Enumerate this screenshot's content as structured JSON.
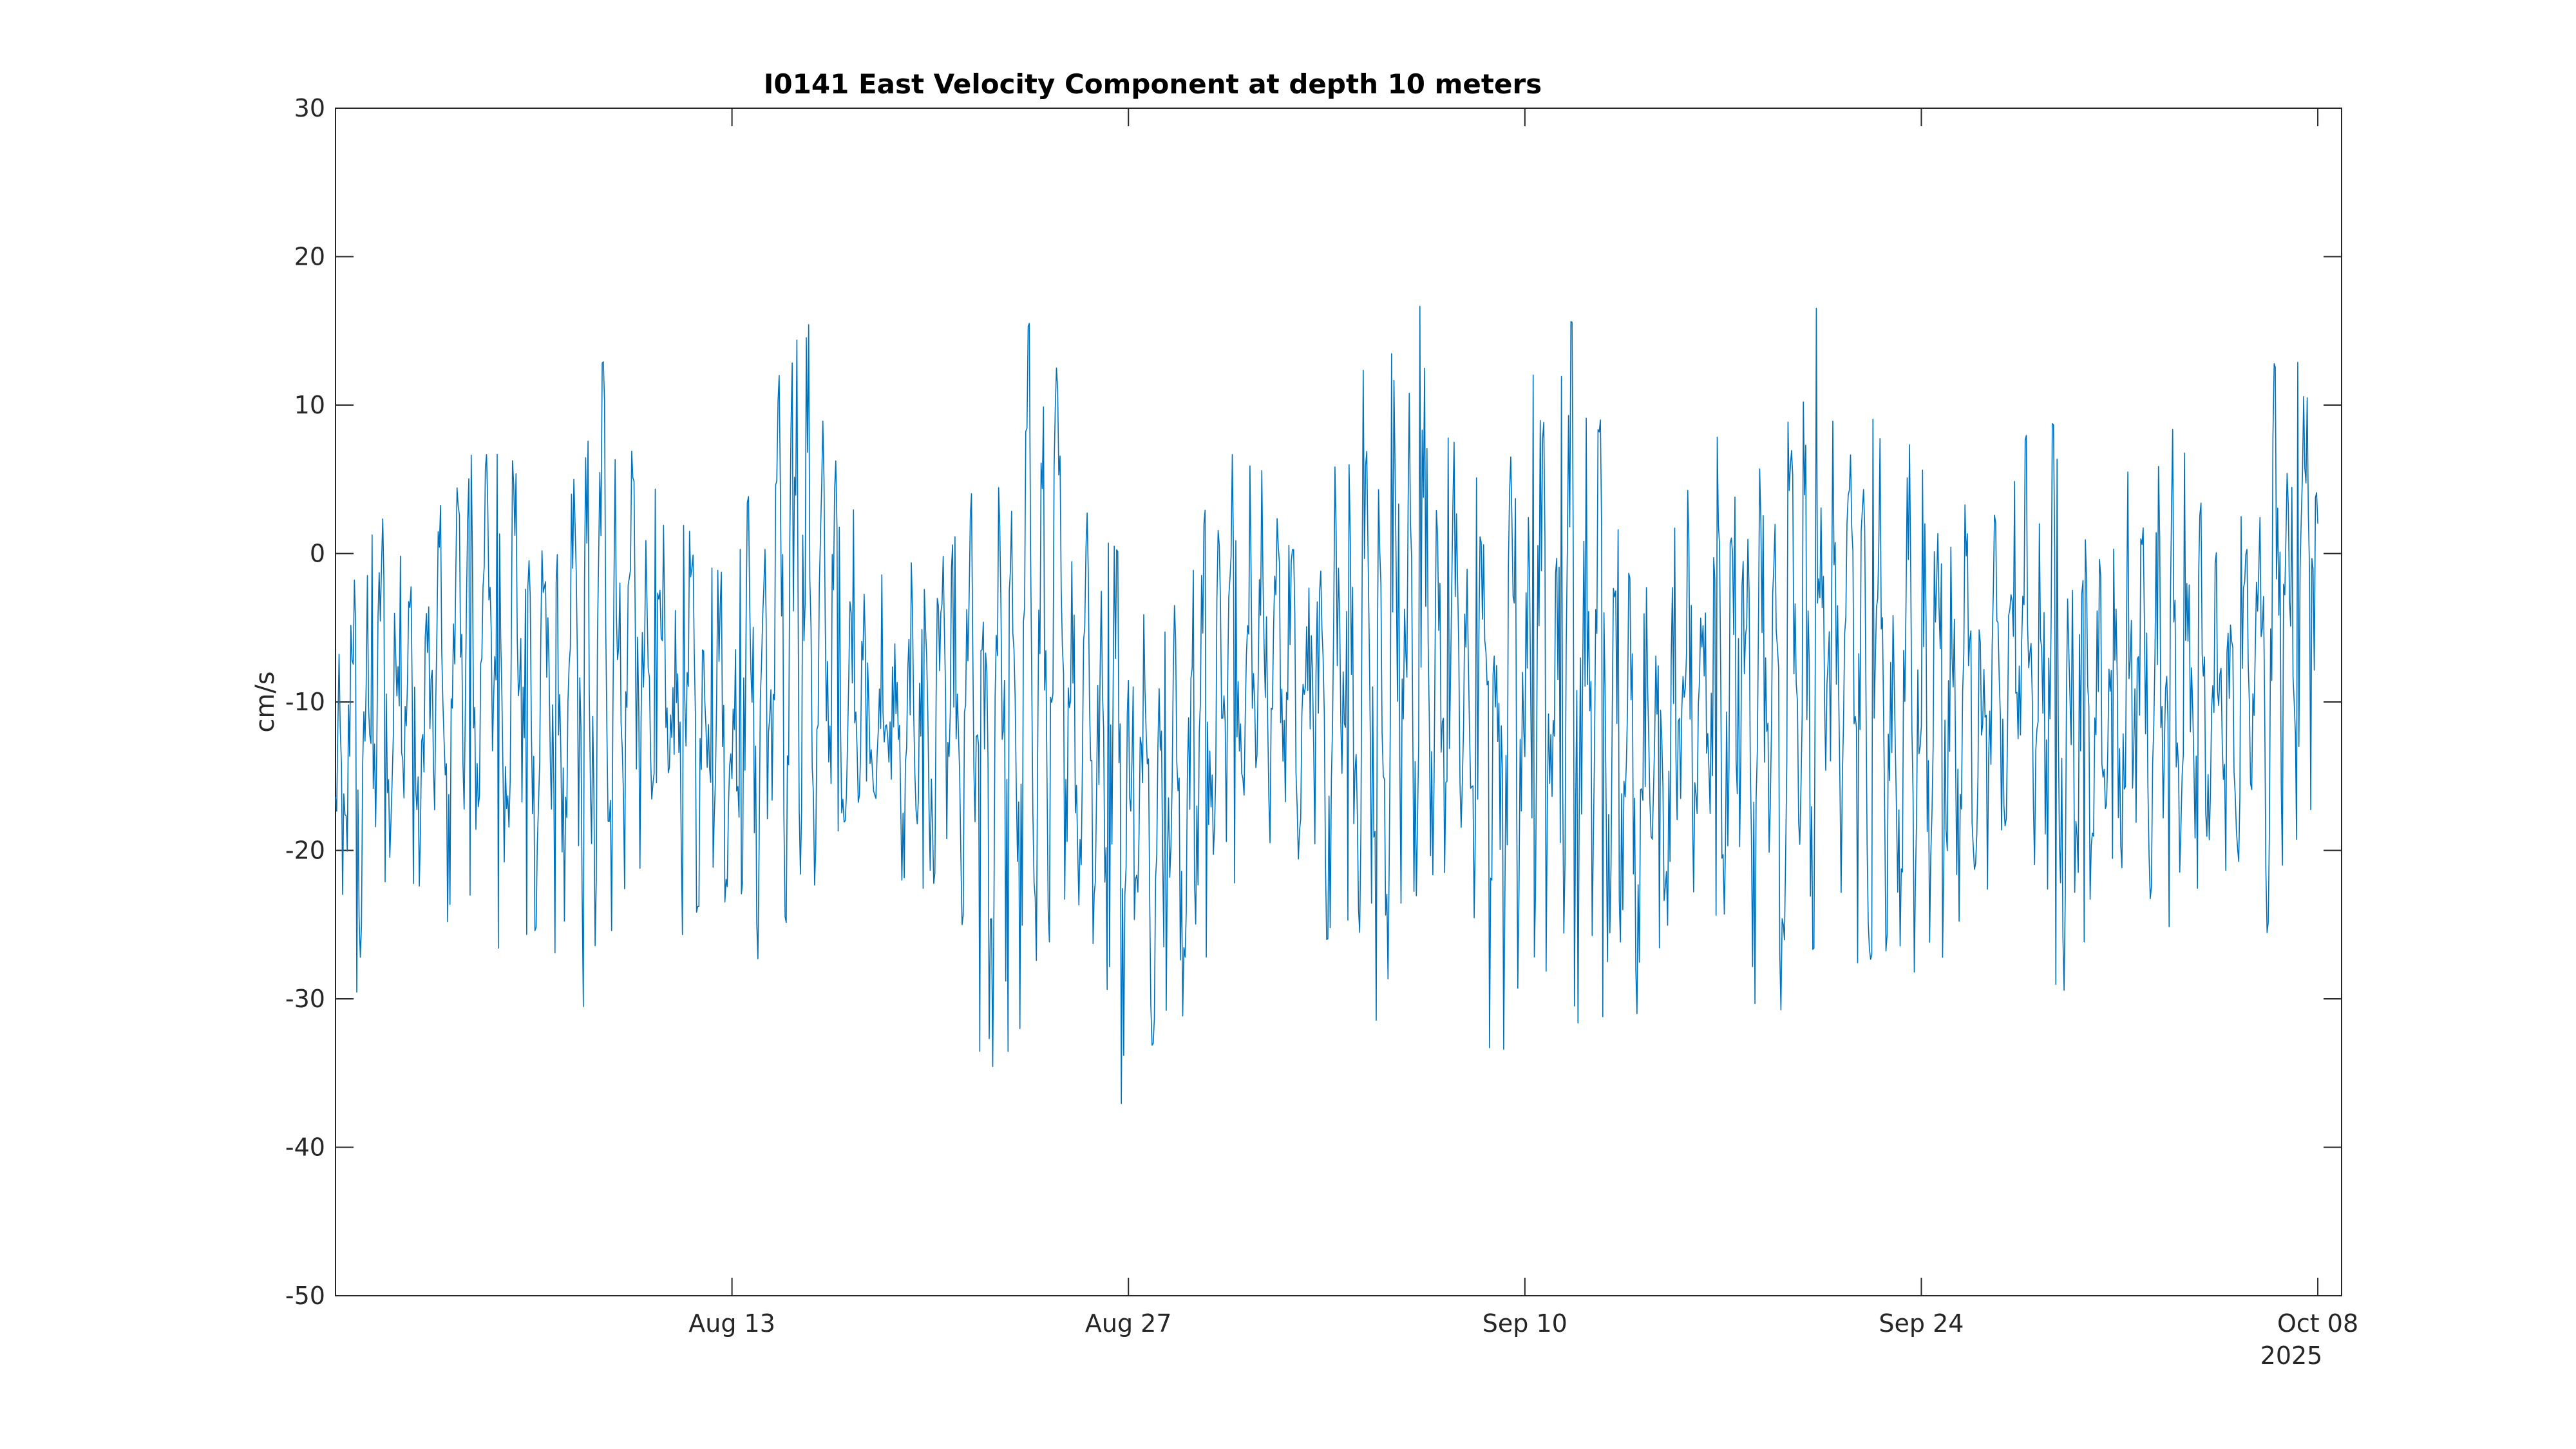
{
  "chart_data": {
    "type": "line",
    "title": "I0141 East Velocity Component at depth 10 meters",
    "xlabel": "",
    "ylabel": "cm/s",
    "x_range": [
      "2025-07-30",
      "2025-10-08"
    ],
    "x_ticks": [
      {
        "date": "2025-08-13",
        "label": "Aug 13"
      },
      {
        "date": "2025-08-27",
        "label": "Aug 27"
      },
      {
        "date": "2025-09-10",
        "label": "Sep 10"
      },
      {
        "date": "2025-09-24",
        "label": "Sep 24"
      },
      {
        "date": "2025-10-08",
        "label": "Oct 08"
      }
    ],
    "x_secondary_label": "2025",
    "ylim": [
      -50,
      30
    ],
    "y_ticks": [
      -50,
      -40,
      -30,
      -20,
      -10,
      0,
      10,
      20,
      30
    ],
    "grid": false,
    "line_color": "#0072BD",
    "series": [
      {
        "x": [
          "2025-07-30",
          "2025-07-31",
          "2025-08-01",
          "2025-08-02",
          "2025-08-03",
          "2025-08-04",
          "2025-08-05",
          "2025-08-06",
          "2025-08-07",
          "2025-08-08",
          "2025-08-09",
          "2025-08-10",
          "2025-08-11",
          "2025-08-12",
          "2025-08-13",
          "2025-08-14",
          "2025-08-15",
          "2025-08-16",
          "2025-08-17",
          "2025-08-18",
          "2025-08-19",
          "2025-08-20",
          "2025-08-21",
          "2025-08-22",
          "2025-08-23",
          "2025-08-24",
          "2025-08-25",
          "2025-08-26",
          "2025-08-27",
          "2025-08-28",
          "2025-08-29",
          "2025-08-30",
          "2025-08-31",
          "2025-09-01",
          "2025-09-02",
          "2025-09-03",
          "2025-09-04",
          "2025-09-05",
          "2025-09-06",
          "2025-09-07",
          "2025-09-08",
          "2025-09-09",
          "2025-09-10",
          "2025-09-11",
          "2025-09-12",
          "2025-09-13",
          "2025-09-14",
          "2025-09-15",
          "2025-09-16",
          "2025-09-17",
          "2025-09-18",
          "2025-09-19",
          "2025-09-20",
          "2025-09-21",
          "2025-09-22",
          "2025-09-23",
          "2025-09-24",
          "2025-09-25",
          "2025-09-26",
          "2025-09-27",
          "2025-09-28",
          "2025-09-29",
          "2025-09-30",
          "2025-10-01",
          "2025-10-02",
          "2025-10-03",
          "2025-10-04",
          "2025-10-05",
          "2025-10-06",
          "2025-10-07",
          "2025-10-08"
        ],
        "min": [
          -34,
          -29,
          -20,
          -24,
          -27,
          -23,
          -29,
          -26,
          -28,
          -33,
          -23,
          -21,
          -26,
          -25,
          -23,
          -30,
          -37,
          -21,
          -18,
          -16,
          -22,
          -24,
          -23,
          -39,
          -33,
          -27,
          -23,
          -28,
          -41,
          -35,
          -40,
          -23,
          -22,
          -20,
          -24,
          -26,
          -25,
          -34,
          -24,
          -21,
          -24,
          -37,
          -27,
          -29,
          -32,
          -31,
          -32,
          -25,
          -26,
          -24,
          -31,
          -36,
          -27,
          -25,
          -29,
          -28,
          -30,
          -27,
          -21,
          -26,
          -23,
          -32,
          -25,
          -21,
          -23,
          -26,
          -22,
          -23,
          -27,
          -20,
          -17
        ],
        "max": [
          -8,
          3,
          2,
          -4,
          9,
          6,
          8,
          1,
          0,
          12,
          14,
          5,
          3,
          0,
          -2,
          8,
          14,
          16,
          5,
          1,
          -3,
          5,
          6,
          6,
          13,
          18,
          6,
          2,
          -1,
          -6,
          -2,
          6,
          7,
          5,
          1,
          4,
          14,
          11,
          20,
          9,
          6,
          6,
          13,
          10,
          19,
          4,
          -4,
          2,
          5,
          17,
          6,
          5,
          20,
          12,
          11,
          5,
          9,
          6,
          2,
          3,
          10,
          8,
          2,
          6,
          5,
          9,
          4,
          -2,
          14,
          13,
          15
        ],
        "mean": [
          -18,
          -12,
          -9,
          -12,
          -8,
          -5,
          -6,
          -10,
          -12,
          -7,
          -5,
          -9,
          -12,
          -11,
          -13,
          -9,
          -5,
          -4,
          -8,
          -12,
          -13,
          -10,
          -11,
          -14,
          -10,
          -5,
          -9,
          -13,
          -15,
          -18,
          -17,
          -10,
          -6,
          -7,
          -10,
          -11,
          -8,
          -12,
          -6,
          -8,
          -10,
          -13,
          -9,
          -8,
          -6,
          -12,
          -15,
          -13,
          -11,
          -6,
          -10,
          -14,
          -8,
          -6,
          -9,
          -12,
          -8,
          -9,
          -11,
          -10,
          -6,
          -9,
          -12,
          -10,
          -9,
          -7,
          -10,
          -12,
          -8,
          -3,
          2
        ]
      }
    ]
  }
}
